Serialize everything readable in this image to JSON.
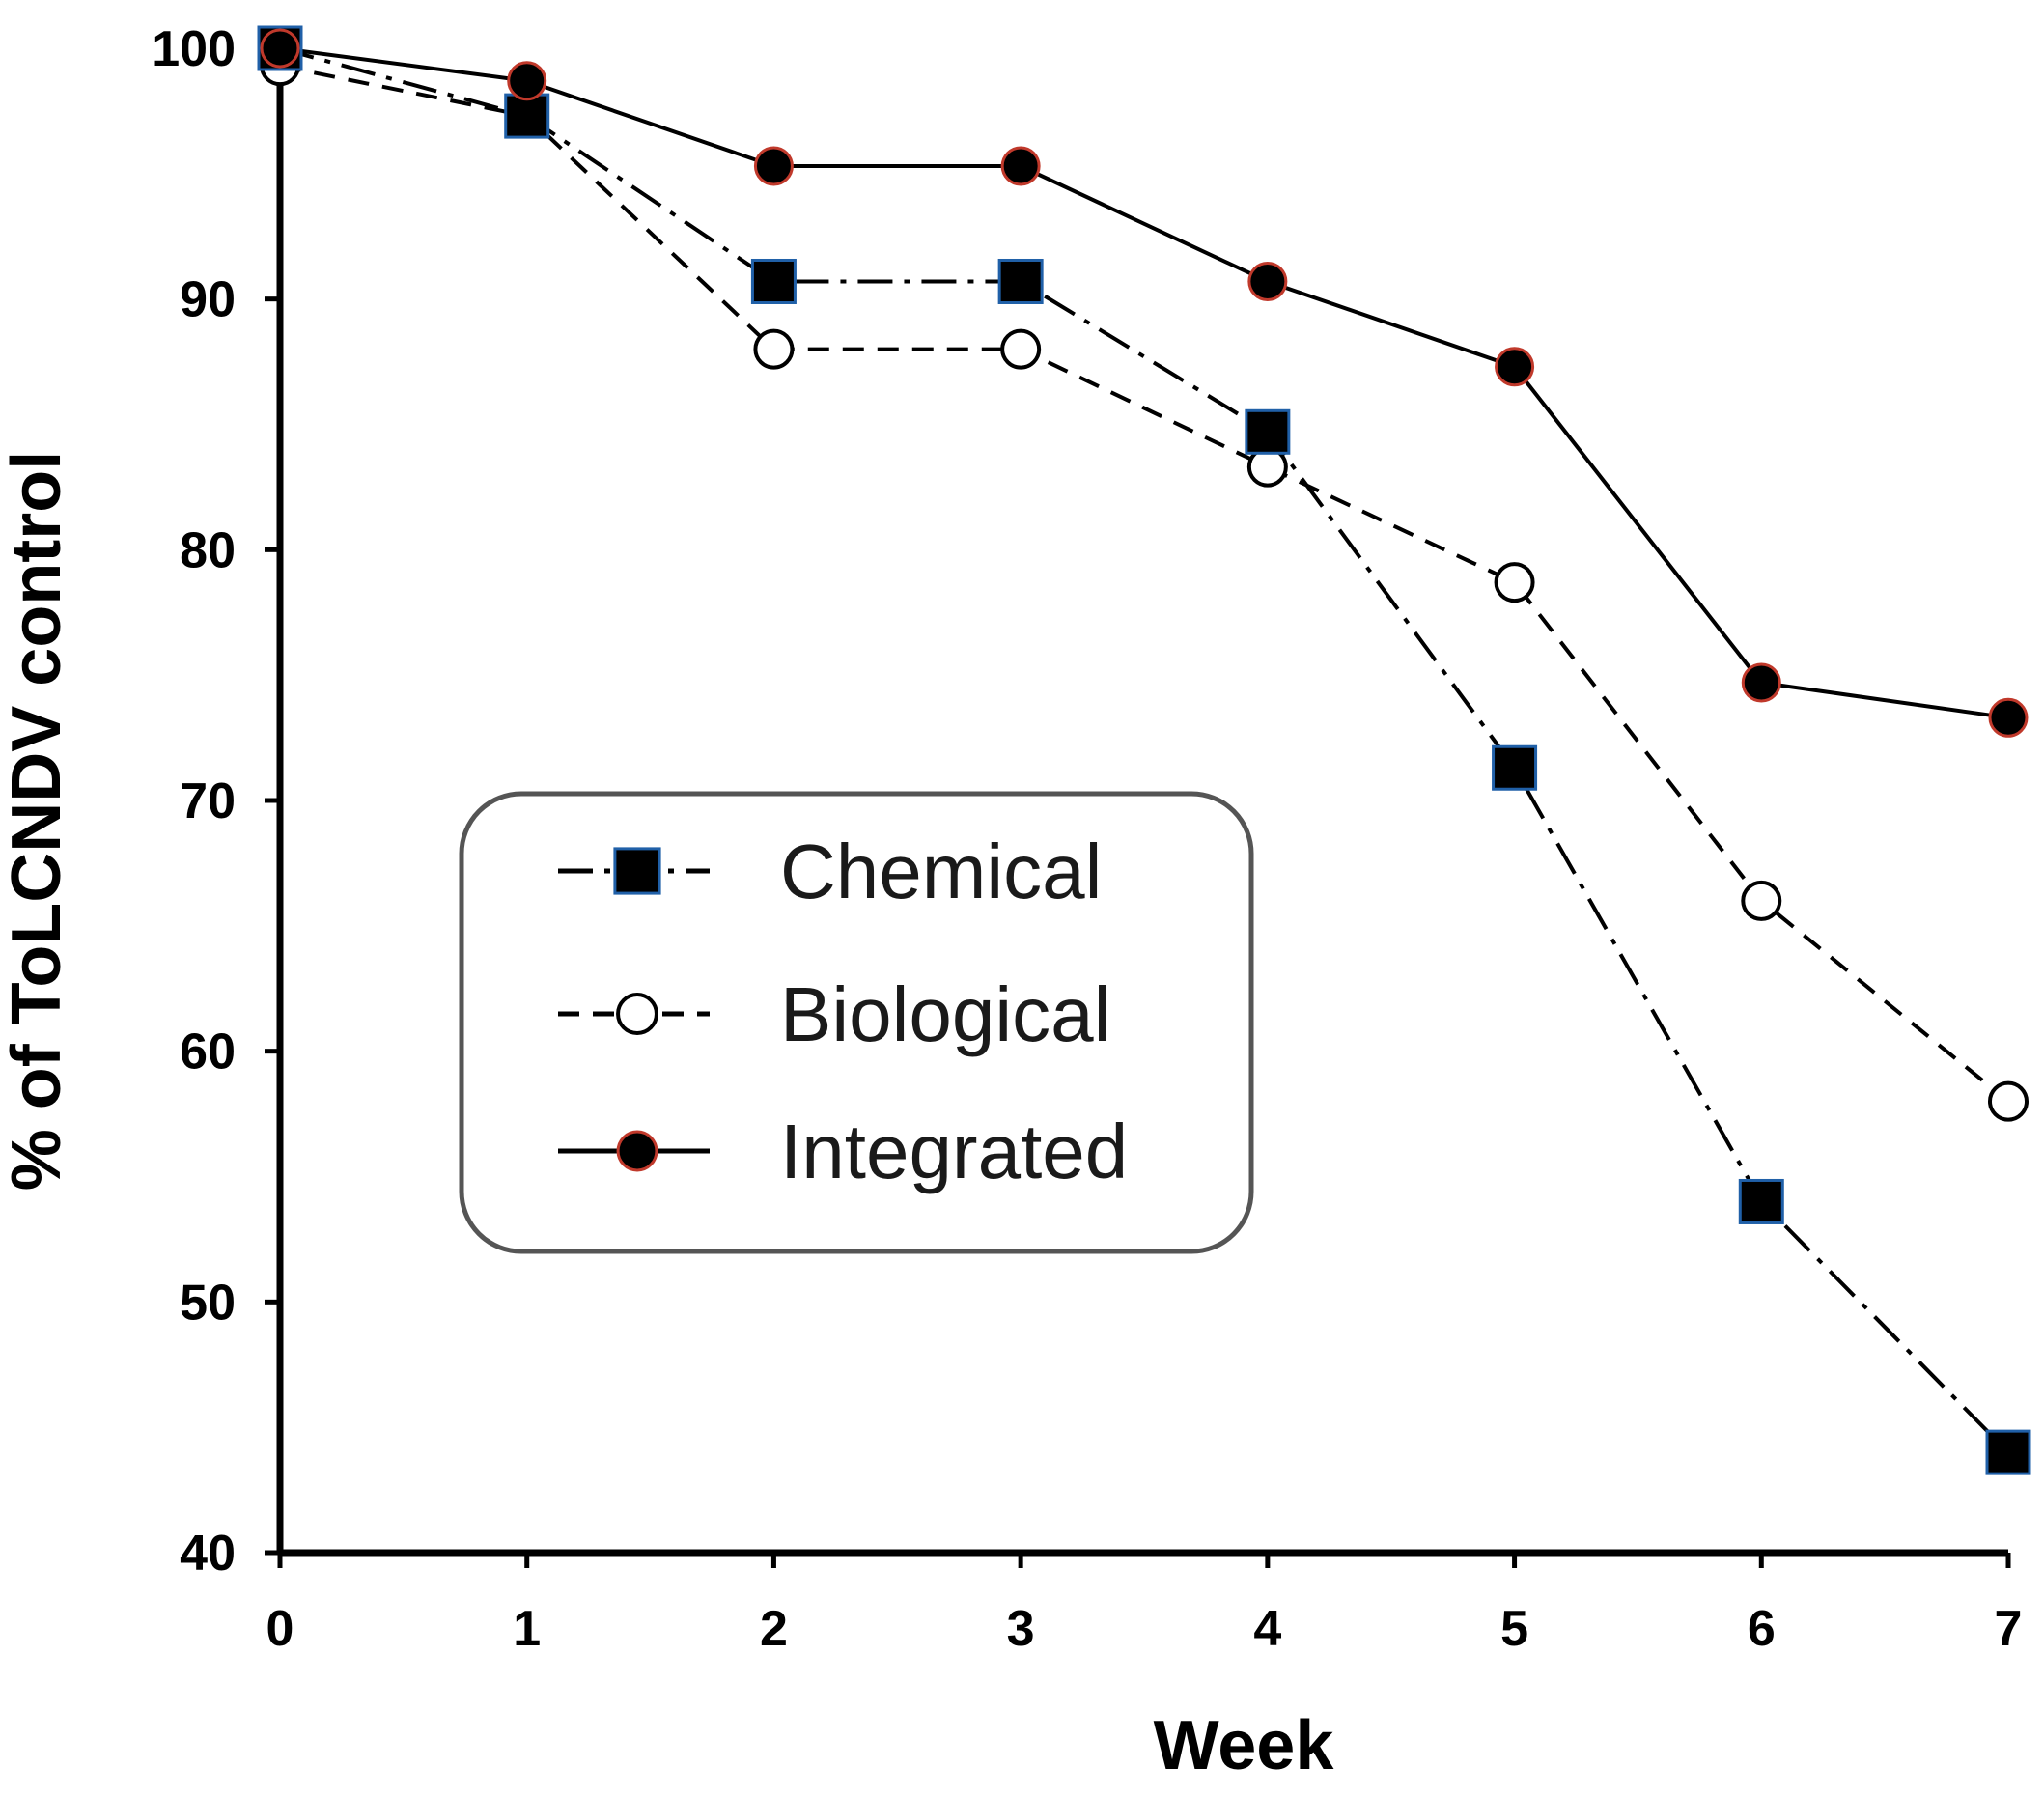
{
  "chart_data": {
    "type": "line",
    "title": "",
    "xlabel": "Week",
    "ylabel": "% of ToLCNDV control",
    "x": [
      0,
      1,
      2,
      3,
      4,
      5,
      6,
      7
    ],
    "xlim": [
      0,
      7
    ],
    "ylim": [
      40,
      100
    ],
    "yticks": [
      40,
      50,
      60,
      70,
      80,
      90,
      100
    ],
    "xticks": [
      0,
      1,
      2,
      3,
      4,
      5,
      6,
      7
    ],
    "grid": false,
    "legend_position": "center-left",
    "series": [
      {
        "name": "Chemical",
        "values": [
          100,
          97.3,
          90.7,
          90.7,
          84.7,
          71.3,
          54,
          44
        ],
        "marker": "square",
        "line_style": "dash-dot",
        "marker_fill": "#000000",
        "marker_edge": "#2060a8"
      },
      {
        "name": "Biological",
        "values": [
          99.3,
          97.3,
          88,
          88,
          83.3,
          78.7,
          66,
          58
        ],
        "marker": "open-circle",
        "line_style": "dashed",
        "marker_fill": "#ffffff",
        "marker_edge": "#000000"
      },
      {
        "name": "Integrated",
        "values": [
          100,
          98.7,
          95.3,
          95.3,
          90.7,
          87.3,
          74.7,
          73.3
        ],
        "marker": "filled-circle",
        "line_style": "solid",
        "marker_fill": "#000000",
        "marker_edge": "#c0392b"
      }
    ]
  }
}
